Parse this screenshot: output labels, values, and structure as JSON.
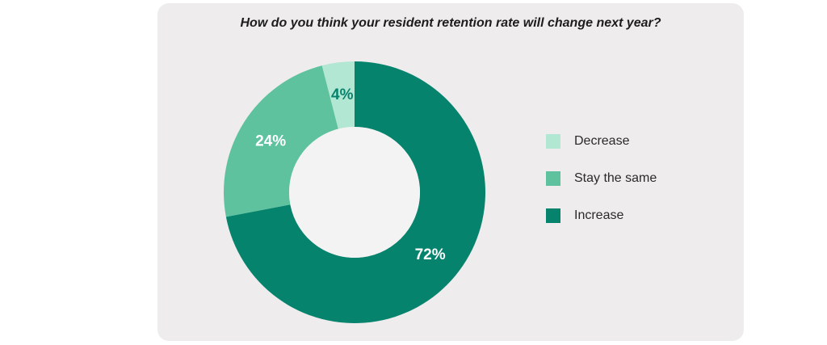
{
  "chart_data": {
    "type": "pie",
    "title": "How do you think your resident retention rate will change next year?",
    "categories": [
      "Increase",
      "Stay the same",
      "Decrease"
    ],
    "values": [
      72,
      24,
      4
    ],
    "value_labels": [
      "72%",
      "24%",
      "4%"
    ],
    "colors": [
      "#06836d",
      "#5dc29d",
      "#b2e7d3"
    ],
    "label_colors": [
      "#ffffff",
      "#ffffff",
      "#06836d"
    ],
    "donut": true,
    "legend": {
      "position": "right",
      "entries": [
        {
          "label": "Decrease",
          "color": "#b2e7d3"
        },
        {
          "label": "Stay the same",
          "color": "#5dc29d"
        },
        {
          "label": "Increase",
          "color": "#06836d"
        }
      ]
    }
  }
}
